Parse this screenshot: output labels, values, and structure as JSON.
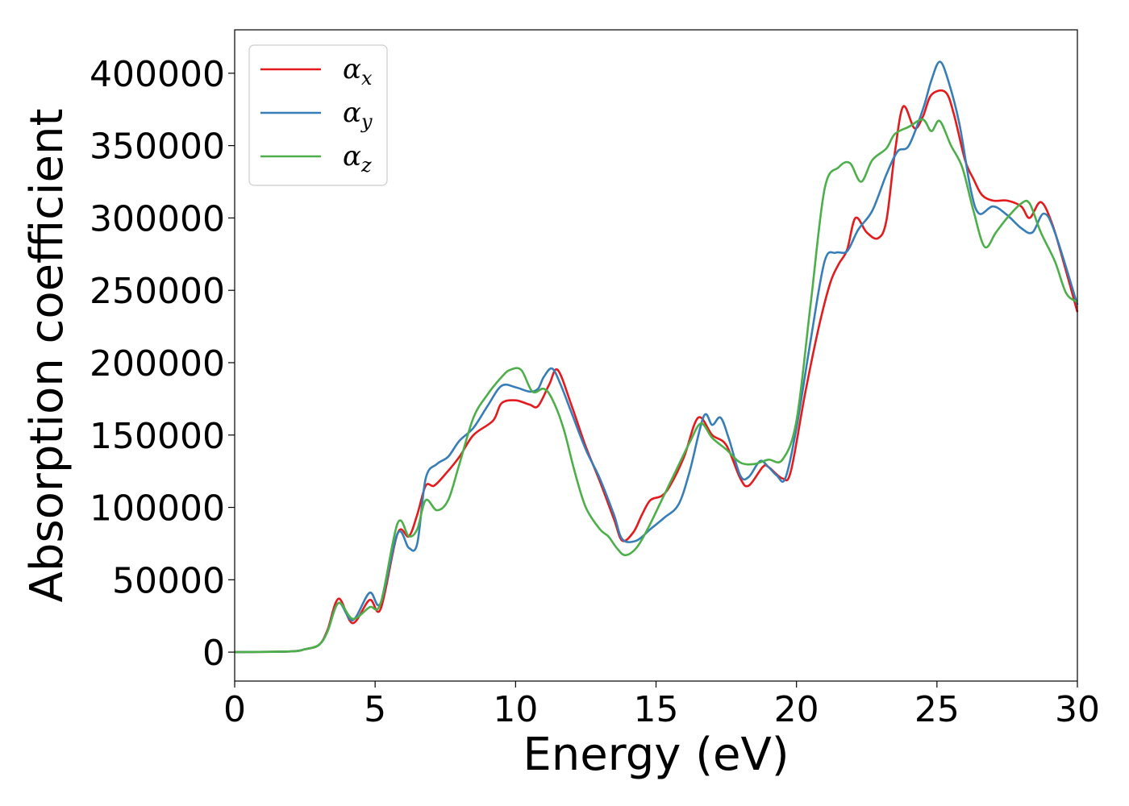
{
  "chart_data": {
    "type": "line",
    "xlabel": "Energy (eV)",
    "ylabel": "Absorption coefficient",
    "xlim": [
      0,
      30
    ],
    "ylim": [
      -20000,
      430000
    ],
    "x_ticks": [
      "0",
      "5",
      "10",
      "15",
      "20",
      "25",
      "30"
    ],
    "y_ticks": [
      "0",
      "50000",
      "100000",
      "150000",
      "200000",
      "250000",
      "300000",
      "350000",
      "400000"
    ],
    "legend_position": "top-left",
    "grid": false,
    "series": [
      {
        "name": "α_x",
        "base": "α",
        "sub": "x",
        "color": "#e41a1c",
        "x": [
          0,
          2,
          2.5,
          3,
          3.3,
          3.7,
          4.2,
          4.8,
          5.2,
          5.8,
          6.2,
          6.5,
          6.8,
          7.1,
          7.5,
          8,
          8.5,
          9.2,
          9.5,
          10,
          10.5,
          10.8,
          11.2,
          11.5,
          12,
          12.5,
          13,
          13.5,
          13.8,
          14.2,
          14.5,
          14.8,
          15.2,
          15.5,
          16,
          16.5,
          17,
          17.5,
          18,
          18.3,
          18.8,
          19,
          19.5,
          19.8,
          20.3,
          20.8,
          21.2,
          21.5,
          21.8,
          22.1,
          22.5,
          22.9,
          23.2,
          23.5,
          23.8,
          24.2,
          24.5,
          24.8,
          25.3,
          25.6,
          26,
          26.3,
          26.6,
          27,
          27.5,
          28,
          28.3,
          28.7,
          29.1,
          29.5,
          30
        ],
        "y": [
          0,
          500,
          2000,
          5000,
          15000,
          37000,
          20000,
          36000,
          30000,
          82000,
          80000,
          95000,
          115000,
          115000,
          123000,
          135000,
          150000,
          160000,
          172000,
          174000,
          171000,
          170000,
          185000,
          195000,
          170000,
          142000,
          118000,
          92000,
          77000,
          83000,
          95000,
          105000,
          108000,
          115000,
          135000,
          162000,
          150000,
          143000,
          120000,
          115000,
          128000,
          128000,
          120000,
          125000,
          178000,
          225000,
          255000,
          268000,
          278000,
          300000,
          290000,
          286000,
          298000,
          345000,
          377000,
          362000,
          370000,
          385000,
          387000,
          372000,
          340000,
          327000,
          316000,
          312000,
          312000,
          308000,
          300000,
          311000,
          296000,
          270000,
          235000
        ]
      },
      {
        "name": "α_y",
        "base": "α",
        "sub": "y",
        "color": "#377eb8",
        "x": [
          0,
          2,
          2.5,
          3,
          3.3,
          3.7,
          4.2,
          4.8,
          5.2,
          5.8,
          6.2,
          6.5,
          6.8,
          7.2,
          7.6,
          8,
          8.5,
          9,
          9.5,
          10,
          10.5,
          10.8,
          11,
          11.3,
          11.6,
          12,
          12.5,
          13,
          13.5,
          13.8,
          14.3,
          14.8,
          15.3,
          15.8,
          16.2,
          16.7,
          17,
          17.3,
          17.6,
          18,
          18.3,
          18.7,
          19,
          19.3,
          19.6,
          20,
          20.5,
          21,
          21.4,
          21.8,
          22.2,
          22.7,
          23.2,
          23.6,
          24,
          24.5,
          24.8,
          25.1,
          25.4,
          25.8,
          26.2,
          26.5,
          27,
          27.5,
          28,
          28.4,
          28.8,
          29.2,
          30
        ],
        "y": [
          0,
          500,
          2000,
          5000,
          14000,
          34000,
          22000,
          41000,
          34000,
          82000,
          72000,
          75000,
          120000,
          130000,
          135000,
          146000,
          155000,
          170000,
          184000,
          183000,
          180000,
          182000,
          190000,
          196000,
          185000,
          165000,
          140000,
          120000,
          95000,
          78000,
          77000,
          85000,
          93000,
          102000,
          125000,
          163000,
          157000,
          162000,
          147000,
          122000,
          121000,
          132000,
          128000,
          122000,
          120000,
          155000,
          215000,
          270000,
          276000,
          277000,
          292000,
          305000,
          330000,
          346000,
          350000,
          375000,
          395000,
          408000,
          395000,
          365000,
          320000,
          303000,
          308000,
          302000,
          293000,
          290000,
          303000,
          290000,
          240000
        ]
      },
      {
        "name": "α_z",
        "base": "α",
        "sub": "z",
        "color": "#4daf4a",
        "x": [
          0,
          2,
          2.5,
          3,
          3.3,
          3.7,
          4.2,
          4.8,
          5.2,
          5.8,
          6.2,
          6.5,
          6.8,
          7.2,
          7.6,
          8,
          8.5,
          9,
          9.5,
          9.8,
          10.2,
          10.6,
          11,
          11.3,
          11.7,
          12.1,
          12.5,
          13,
          13.3,
          13.6,
          13.9,
          14.3,
          14.7,
          15.2,
          15.7,
          16.2,
          16.6,
          17,
          17.5,
          18,
          18.5,
          19,
          19.5,
          20,
          20.5,
          21,
          21.5,
          21.9,
          22.3,
          22.7,
          23.2,
          23.5,
          24,
          24.5,
          24.8,
          25.1,
          25.5,
          25.9,
          26.3,
          26.7,
          27.1,
          27.5,
          28,
          28.3,
          28.7,
          29.2,
          29.6,
          30
        ],
        "y": [
          0,
          500,
          2000,
          5000,
          14000,
          34000,
          23000,
          31000,
          34000,
          89000,
          80000,
          85000,
          105000,
          98000,
          105000,
          130000,
          162000,
          178000,
          190000,
          195000,
          195000,
          180000,
          182000,
          175000,
          155000,
          125000,
          100000,
          85000,
          80000,
          72000,
          67000,
          72000,
          85000,
          105000,
          125000,
          145000,
          158000,
          148000,
          140000,
          131000,
          130000,
          133000,
          133000,
          160000,
          240000,
          320000,
          335000,
          338000,
          325000,
          340000,
          348000,
          358000,
          363000,
          368000,
          360000,
          367000,
          350000,
          335000,
          305000,
          280000,
          290000,
          300000,
          310000,
          310000,
          290000,
          270000,
          248000,
          242000
        ]
      }
    ]
  }
}
